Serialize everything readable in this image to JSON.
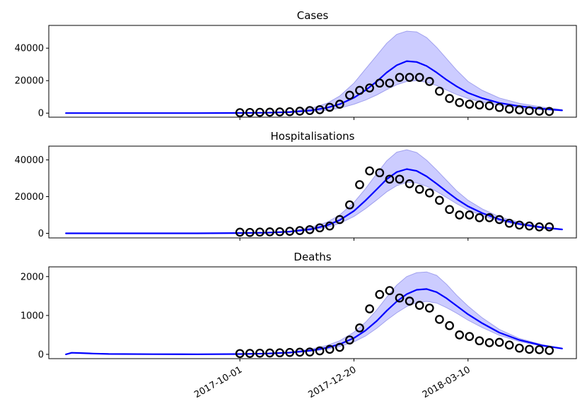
{
  "chart_data": [
    {
      "type": "line",
      "title": "Cases",
      "xlabel": "",
      "ylabel": "",
      "ylim": [
        -2500,
        54000
      ],
      "yticks": [
        0,
        20000,
        40000
      ],
      "ytick_labels": [
        "0",
        "20000",
        "40000"
      ],
      "model": {
        "x": [
          "2017-06-01",
          "2017-07-01",
          "2017-08-01",
          "2017-09-01",
          "2017-10-01",
          "2017-10-20",
          "2017-11-05",
          "2017-11-20",
          "2017-12-01",
          "2017-12-10",
          "2017-12-20",
          "2017-12-28",
          "2018-01-05",
          "2018-01-12",
          "2018-01-19",
          "2018-01-26",
          "2018-02-02",
          "2018-02-09",
          "2018-02-16",
          "2018-02-23",
          "2018-03-02",
          "2018-03-10",
          "2018-03-20",
          "2018-04-01",
          "2018-04-15",
          "2018-05-01",
          "2018-05-15"
        ],
        "y": [
          0,
          0,
          0,
          0,
          100,
          250,
          650,
          1700,
          3300,
          5500,
          9500,
          14000,
          19500,
          25000,
          29500,
          32000,
          31500,
          29000,
          25000,
          20500,
          16500,
          12500,
          9200,
          6300,
          4300,
          2700,
          1700
        ],
        "lower": [
          0,
          0,
          0,
          0,
          60,
          150,
          380,
          950,
          1800,
          3000,
          5500,
          8000,
          11200,
          14500,
          17500,
          19500,
          20000,
          19000,
          17000,
          14200,
          11500,
          9000,
          6800,
          4800,
          3300,
          2100,
          1350
        ],
        "upper": [
          0,
          0,
          0,
          0,
          170,
          420,
          1100,
          3000,
          6000,
          10500,
          18500,
          27000,
          35500,
          43000,
          48500,
          50500,
          50000,
          46500,
          40500,
          33500,
          26500,
          19500,
          14000,
          9300,
          6000,
          3700,
          2200
        ]
      },
      "observed": {
        "x": [
          "2017-10-01",
          "2017-10-08",
          "2017-10-15",
          "2017-10-22",
          "2017-10-29",
          "2017-11-05",
          "2017-11-12",
          "2017-11-19",
          "2017-11-26",
          "2017-12-03",
          "2017-12-10",
          "2017-12-17",
          "2017-12-24",
          "2017-12-31",
          "2018-01-07",
          "2018-01-14",
          "2018-01-21",
          "2018-01-28",
          "2018-02-04",
          "2018-02-11",
          "2018-02-18",
          "2018-02-25",
          "2018-03-04",
          "2018-03-11",
          "2018-03-18",
          "2018-03-25",
          "2018-04-01",
          "2018-04-08",
          "2018-04-15",
          "2018-04-22",
          "2018-04-29",
          "2018-05-06"
        ],
        "y": [
          300,
          400,
          500,
          600,
          700,
          900,
          1200,
          1600,
          2100,
          3600,
          5500,
          11000,
          14000,
          15500,
          18500,
          18500,
          22000,
          22000,
          22000,
          19500,
          13500,
          9000,
          6500,
          5500,
          5000,
          4500,
          3500,
          2500,
          2000,
          1500,
          1200,
          1000
        ]
      }
    },
    {
      "type": "line",
      "title": "Hospitalisations",
      "xlabel": "",
      "ylabel": "",
      "ylim": [
        -2500,
        47500
      ],
      "yticks": [
        0,
        20000,
        40000
      ],
      "ytick_labels": [
        "0",
        "20000",
        "40000"
      ],
      "model": {
        "x": [
          "2017-06-01",
          "2017-07-01",
          "2017-08-01",
          "2017-09-01",
          "2017-10-01",
          "2017-10-20",
          "2017-11-05",
          "2017-11-20",
          "2017-12-01",
          "2017-12-10",
          "2017-12-20",
          "2017-12-28",
          "2018-01-05",
          "2018-01-12",
          "2018-01-19",
          "2018-01-26",
          "2018-02-02",
          "2018-02-09",
          "2018-02-16",
          "2018-02-23",
          "2018-03-02",
          "2018-03-10",
          "2018-03-20",
          "2018-04-01",
          "2018-04-15",
          "2018-05-01",
          "2018-05-15"
        ],
        "y": [
          0,
          0,
          0,
          0,
          150,
          350,
          900,
          2300,
          4300,
          7200,
          12200,
          17800,
          24000,
          29500,
          33400,
          35000,
          34000,
          31000,
          27000,
          22800,
          18700,
          14700,
          11000,
          7600,
          5100,
          3200,
          2100
        ],
        "lower": [
          0,
          0,
          0,
          0,
          100,
          250,
          650,
          1700,
          3200,
          5400,
          9200,
          13400,
          18200,
          22600,
          26000,
          27800,
          27500,
          25600,
          22800,
          19500,
          16200,
          12800,
          9600,
          6700,
          4500,
          2800,
          1900
        ],
        "upper": [
          0,
          0,
          0,
          0,
          220,
          500,
          1300,
          3300,
          6000,
          10000,
          16800,
          24200,
          32500,
          39500,
          44200,
          45500,
          44000,
          39800,
          34500,
          28800,
          23200,
          18000,
          13300,
          9000,
          6000,
          3700,
          2400
        ]
      },
      "observed": {
        "x": [
          "2017-10-01",
          "2017-10-08",
          "2017-10-15",
          "2017-10-22",
          "2017-10-29",
          "2017-11-05",
          "2017-11-12",
          "2017-11-19",
          "2017-11-26",
          "2017-12-03",
          "2017-12-10",
          "2017-12-17",
          "2017-12-24",
          "2017-12-31",
          "2018-01-07",
          "2018-01-14",
          "2018-01-21",
          "2018-01-28",
          "2018-02-04",
          "2018-02-11",
          "2018-02-18",
          "2018-02-25",
          "2018-03-04",
          "2018-03-11",
          "2018-03-18",
          "2018-03-25",
          "2018-04-01",
          "2018-04-08",
          "2018-04-15",
          "2018-04-22",
          "2018-04-29",
          "2018-05-06"
        ],
        "y": [
          600,
          500,
          700,
          800,
          900,
          1100,
          1500,
          2000,
          3000,
          4000,
          7500,
          15500,
          26500,
          34000,
          33000,
          29500,
          29500,
          27000,
          24000,
          22000,
          18000,
          13000,
          10000,
          10000,
          8500,
          8500,
          7500,
          5500,
          4500,
          4000,
          3500,
          3500
        ]
      }
    },
    {
      "type": "line",
      "title": "Deaths",
      "xlabel": "",
      "ylabel": "",
      "ylim": [
        -110,
        2250
      ],
      "yticks": [
        0,
        1000,
        2000
      ],
      "ytick_labels": [
        "0",
        "1000",
        "2000"
      ],
      "xticks": [
        "2017-10-01",
        "2017-12-20",
        "2018-03-10"
      ],
      "xtick_labels": [
        "2017-10-01",
        "2017-12-20",
        "2018-03-10"
      ],
      "model": {
        "x": [
          "2017-06-01",
          "2017-06-05",
          "2017-06-10",
          "2017-06-20",
          "2017-07-01",
          "2017-08-01",
          "2017-09-01",
          "2017-10-01",
          "2017-10-20",
          "2017-11-05",
          "2017-11-20",
          "2017-12-01",
          "2017-12-10",
          "2017-12-20",
          "2017-12-28",
          "2018-01-05",
          "2018-01-12",
          "2018-01-19",
          "2018-01-26",
          "2018-02-02",
          "2018-02-09",
          "2018-02-16",
          "2018-02-23",
          "2018-03-02",
          "2018-03-10",
          "2018-03-20",
          "2018-04-01",
          "2018-04-15",
          "2018-05-01",
          "2018-05-15"
        ],
        "y": [
          0,
          40,
          35,
          20,
          10,
          5,
          3,
          8,
          20,
          45,
          100,
          170,
          260,
          420,
          610,
          860,
          1120,
          1360,
          1550,
          1660,
          1680,
          1600,
          1440,
          1250,
          1030,
          800,
          560,
          370,
          230,
          150
        ],
        "lower": [
          0,
          40,
          35,
          20,
          10,
          5,
          3,
          6,
          15,
          35,
          75,
          130,
          200,
          320,
          470,
          670,
          880,
          1070,
          1230,
          1330,
          1360,
          1320,
          1200,
          1060,
          880,
          690,
          490,
          330,
          210,
          140
        ],
        "upper": [
          0,
          40,
          35,
          20,
          10,
          5,
          3,
          10,
          26,
          60,
          135,
          230,
          350,
          570,
          820,
          1140,
          1470,
          1780,
          2000,
          2100,
          2120,
          2030,
          1800,
          1520,
          1240,
          940,
          640,
          410,
          250,
          160
        ]
      },
      "observed": {
        "x": [
          "2017-10-01",
          "2017-10-08",
          "2017-10-15",
          "2017-10-22",
          "2017-10-29",
          "2017-11-05",
          "2017-11-12",
          "2017-11-19",
          "2017-11-26",
          "2017-12-03",
          "2017-12-10",
          "2017-12-17",
          "2017-12-24",
          "2017-12-31",
          "2018-01-07",
          "2018-01-14",
          "2018-01-21",
          "2018-01-28",
          "2018-02-04",
          "2018-02-11",
          "2018-02-18",
          "2018-02-25",
          "2018-03-04",
          "2018-03-11",
          "2018-03-18",
          "2018-03-25",
          "2018-04-01",
          "2018-04-08",
          "2018-04-15",
          "2018-04-22",
          "2018-04-29",
          "2018-05-06"
        ],
        "y": [
          20,
          25,
          30,
          35,
          40,
          50,
          55,
          60,
          90,
          130,
          180,
          370,
          680,
          1170,
          1540,
          1640,
          1450,
          1370,
          1260,
          1190,
          900,
          740,
          500,
          460,
          350,
          300,
          310,
          240,
          160,
          130,
          120,
          100
        ]
      }
    }
  ],
  "colors": {
    "model_line": "#0000ff",
    "band_fill": "#ccccff",
    "band_edge": "#a0a0ee",
    "observed_marker": "#000000"
  }
}
